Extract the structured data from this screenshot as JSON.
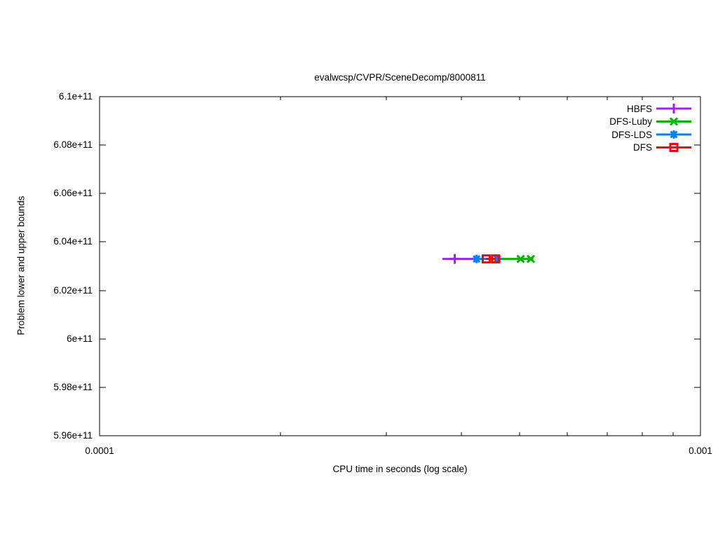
{
  "chart": {
    "title": "evalwcsp/CVPR/SceneDecomp/8000811",
    "xlabel": "CPU time in seconds (log scale)",
    "ylabel": "Problem lower and upper bounds"
  },
  "chart_data": {
    "type": "line",
    "title": "evalwcsp/CVPR/SceneDecomp/8000811",
    "xlabel": "CPU time in seconds (log scale)",
    "ylabel": "Problem lower and upper bounds",
    "x_scale": "log",
    "xlim": [
      0.0001,
      0.001
    ],
    "ylim": [
      596000000000.0,
      610000000000.0
    ],
    "grid": false,
    "legend_position": "top-right",
    "x_ticks": [
      0.0001,
      0.001
    ],
    "x_tick_labels": [
      "0.0001",
      "0.001"
    ],
    "x_minor_ticks": [
      0.0002,
      0.0003,
      0.0004,
      0.0005,
      0.0006,
      0.0007,
      0.0008,
      0.0009
    ],
    "y_ticks": [
      596000000000.0,
      598000000000.0,
      600000000000.0,
      602000000000.0,
      604000000000.0,
      606000000000.0,
      608000000000.0,
      610000000000.0
    ],
    "y_tick_labels": [
      "5.96e+11",
      "5.98e+11",
      "6e+11",
      "6.02e+11",
      "6.04e+11",
      "6.06e+11",
      "6.08e+11",
      "6.1e+11"
    ],
    "bounds_value": 603300000000.0,
    "series": [
      {
        "name": "HBFS",
        "color": "#a020f0",
        "marker": "plus",
        "y": 603300000000.0,
        "line_x": [
          0.000372,
          0.000422
        ],
        "marker_x": [
          0.00039
        ]
      },
      {
        "name": "DFS-Luby",
        "color": "#00b400",
        "marker": "cross",
        "y": 603300000000.0,
        "line_x": [
          0.00046,
          0.000527
        ],
        "marker_x": [
          0.000502,
          0.000522
        ]
      },
      {
        "name": "DFS-LDS",
        "color": "#0080ff",
        "marker": "asterisk",
        "y": 603300000000.0,
        "line_x": [
          0.000421,
          0.000459
        ],
        "marker_x": [
          0.000424,
          0.000459
        ]
      },
      {
        "name": "DFS",
        "color": "#ff0000",
        "marker": "square",
        "y": 603300000000.0,
        "line_x": [
          0.00044,
          0.000456
        ],
        "marker_x": [
          0.00044,
          0.000456
        ]
      }
    ],
    "legend_order": [
      "HBFS",
      "DFS-Luby",
      "DFS-LDS",
      "DFS"
    ]
  }
}
